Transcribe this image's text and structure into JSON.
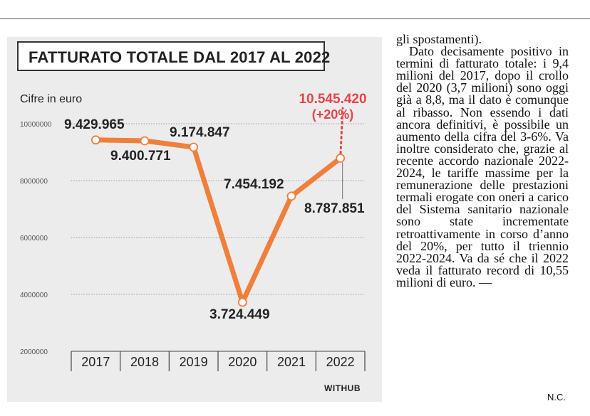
{
  "chart_data": {
    "type": "line",
    "title": "FATTURATO TOTALE DAL 2017 AL 2022",
    "ylabel": "Cifre in euro",
    "categories": [
      "2017",
      "2018",
      "2019",
      "2020",
      "2021",
      "2022"
    ],
    "values": [
      9429965,
      9400771,
      9174847,
      3724449,
      7454192,
      8787851
    ],
    "value_labels": [
      "9.429.965",
      "9.400.771",
      "9.174.847",
      "3.724.449",
      "7.454.192",
      "8.787.851"
    ],
    "projection": {
      "from_year": "2022",
      "value": 10545420,
      "label": "10.545.420",
      "change_label": "(+20%)"
    },
    "yticks": [
      2000000,
      4000000,
      6000000,
      8000000,
      10000000
    ],
    "ytick_labels": [
      "2000000",
      "4000000",
      "6000000",
      "8000000",
      "10000000"
    ],
    "ylim": [
      2000000,
      10000000
    ],
    "grid": true,
    "colors": {
      "line": "#f07f3c",
      "projection": "#e8434a",
      "label": "#222222",
      "projection_label": "#e8434a"
    }
  },
  "brand": "WITHUB",
  "article": {
    "paragraphs": [
      "gli spostamenti).",
      "Dato decisamente positivo in termini di fatturato totale: i 9,4 milioni del 2017, dopo il crollo del 2020 (3,7 milioni) sono oggi già a 8,8, ma il dato è comunque al ribasso. Non essendo i dati ancora definitivi, è possibile un aumento della cifra del 3-6%. Va inoltre considerato che, grazie al recente accordo nazionale 2022-2024, le tariffe massime per la remunerazione delle prestazioni termali erogate con oneri a carico del Sistema sanitario nazionale sono state incrementate retroattivamente in corso d’anno del 20%, per tutto il triennio 2022-2024. Va da sé che il 2022 veda il fatturato record di 10,55 milioni di euro. —"
    ],
    "signature": "N.C."
  }
}
